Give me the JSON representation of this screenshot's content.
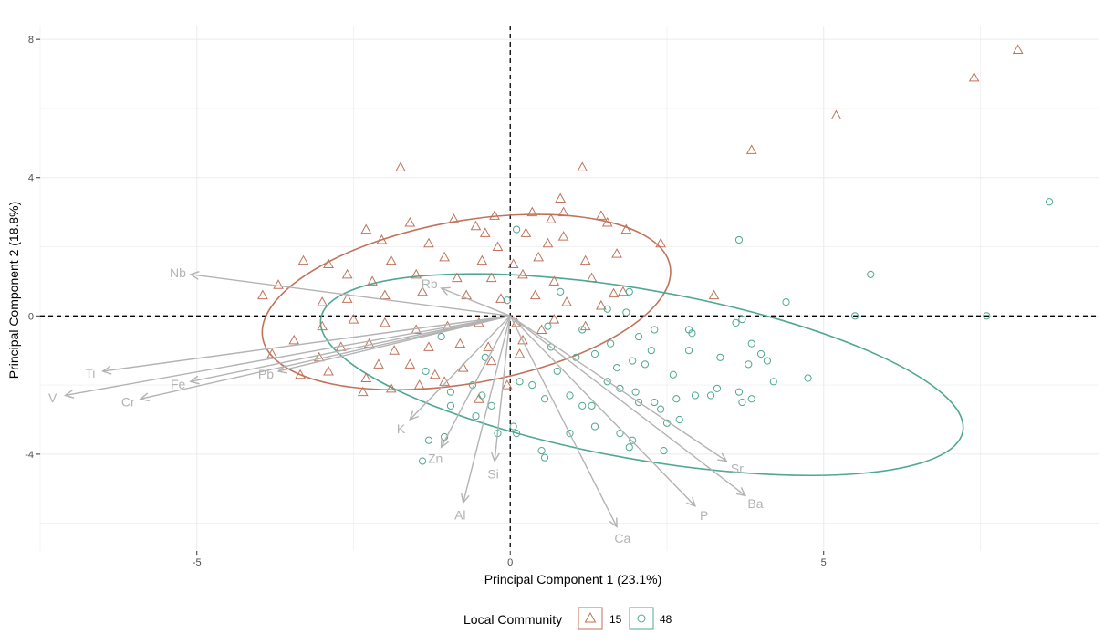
{
  "chart_data": {
    "type": "scatter",
    "title": "",
    "xlabel": "Principal Component 1 (23.1%)",
    "ylabel": "Principal Component 2 (18.8%)",
    "xlim": [
      -7.5,
      9.4
    ],
    "ylim": [
      -6.8,
      8.4
    ],
    "x_ticks": [
      -5,
      0,
      5
    ],
    "y_ticks": [
      -4,
      0,
      4,
      8
    ],
    "x_tick_labels": [
      "-5",
      "0",
      "5"
    ],
    "y_tick_labels": [
      "-4",
      "0",
      "4",
      "8"
    ],
    "grid": true,
    "reference_lines": {
      "x": 0,
      "y": 0,
      "style": "dashed"
    },
    "legend": {
      "title": "Local Community",
      "placement": "bottom",
      "entries": [
        {
          "label": "15",
          "marker": "triangle",
          "color": "#c0735a"
        },
        {
          "label": "48",
          "marker": "circle",
          "color": "#4fa893"
        }
      ]
    },
    "loadings": [
      {
        "name": "Nb",
        "x": -5.1,
        "y": 1.2
      },
      {
        "name": "Rb",
        "x": -1.1,
        "y": 0.8
      },
      {
        "name": "Ti",
        "x": -6.5,
        "y": -1.6
      },
      {
        "name": "V",
        "x": -7.1,
        "y": -2.3
      },
      {
        "name": "Fe",
        "x": -5.1,
        "y": -1.9
      },
      {
        "name": "Cr",
        "x": -5.9,
        "y": -2.4
      },
      {
        "name": "Pb",
        "x": -3.7,
        "y": -1.6
      },
      {
        "name": "K",
        "x": -1.6,
        "y": -3.0
      },
      {
        "name": "Zn",
        "x": -1.1,
        "y": -3.8
      },
      {
        "name": "Si",
        "x": -0.25,
        "y": -4.2
      },
      {
        "name": "Al",
        "x": -0.75,
        "y": -5.4
      },
      {
        "name": "Ca",
        "x": 1.7,
        "y": -6.1
      },
      {
        "name": "P",
        "x": 2.95,
        "y": -5.5
      },
      {
        "name": "Ba",
        "x": 3.75,
        "y": -5.2
      },
      {
        "name": "Sr",
        "x": 3.45,
        "y": -4.2
      }
    ],
    "series": [
      {
        "name": "15",
        "marker": "triangle",
        "color": "#c0735a",
        "ellipse": {
          "cx": -0.7,
          "cy": 0.4,
          "rx": 3.3,
          "ry": 2.35,
          "angle": 10
        },
        "points": [
          [
            8.1,
            7.7
          ],
          [
            7.4,
            6.9
          ],
          [
            5.2,
            5.8
          ],
          [
            3.85,
            4.8
          ],
          [
            -1.75,
            4.3
          ],
          [
            1.15,
            4.3
          ],
          [
            0.8,
            3.4
          ],
          [
            0.35,
            3.0
          ],
          [
            0.85,
            3.0
          ],
          [
            0.65,
            2.8
          ],
          [
            -0.9,
            2.8
          ],
          [
            -0.25,
            2.9
          ],
          [
            1.45,
            2.9
          ],
          [
            1.55,
            2.7
          ],
          [
            1.85,
            2.5
          ],
          [
            2.4,
            2.1
          ],
          [
            -1.6,
            2.7
          ],
          [
            -2.3,
            2.5
          ],
          [
            -0.4,
            2.4
          ],
          [
            -0.55,
            2.6
          ],
          [
            0.25,
            2.4
          ],
          [
            -2.05,
            2.2
          ],
          [
            -1.3,
            2.1
          ],
          [
            -0.2,
            2.0
          ],
          [
            0.6,
            2.1
          ],
          [
            0.85,
            2.3
          ],
          [
            -3.3,
            1.6
          ],
          [
            -2.9,
            1.5
          ],
          [
            -1.9,
            1.6
          ],
          [
            -1.05,
            1.7
          ],
          [
            -0.45,
            1.6
          ],
          [
            0.05,
            1.5
          ],
          [
            0.45,
            1.7
          ],
          [
            1.2,
            1.6
          ],
          [
            1.7,
            1.8
          ],
          [
            -3.95,
            0.6
          ],
          [
            -3.7,
            0.9
          ],
          [
            -2.6,
            1.2
          ],
          [
            -2.2,
            1.0
          ],
          [
            -1.5,
            1.2
          ],
          [
            -0.85,
            1.1
          ],
          [
            -0.3,
            1.1
          ],
          [
            0.2,
            1.2
          ],
          [
            0.7,
            1.0
          ],
          [
            1.3,
            1.1
          ],
          [
            3.25,
            0.6
          ],
          [
            1.8,
            0.7
          ],
          [
            -3.0,
            0.4
          ],
          [
            -2.6,
            0.5
          ],
          [
            -2.0,
            0.6
          ],
          [
            -1.4,
            0.7
          ],
          [
            -0.7,
            0.6
          ],
          [
            -0.15,
            0.5
          ],
          [
            0.4,
            0.6
          ],
          [
            0.9,
            0.4
          ],
          [
            1.45,
            0.3
          ],
          [
            1.65,
            0.65
          ],
          [
            -3.45,
            -0.7
          ],
          [
            -3.0,
            -0.3
          ],
          [
            -2.5,
            -0.1
          ],
          [
            -2.0,
            -0.2
          ],
          [
            -1.5,
            -0.4
          ],
          [
            -1.0,
            -0.3
          ],
          [
            -0.5,
            -0.2
          ],
          [
            0.1,
            -0.2
          ],
          [
            0.7,
            -0.1
          ],
          [
            1.2,
            -0.3
          ],
          [
            -3.35,
            -1.7
          ],
          [
            -3.05,
            -1.2
          ],
          [
            -2.7,
            -0.9
          ],
          [
            -2.25,
            -0.8
          ],
          [
            -1.85,
            -1.0
          ],
          [
            -1.3,
            -0.9
          ],
          [
            -0.8,
            -0.8
          ],
          [
            -0.35,
            -0.9
          ],
          [
            0.2,
            -0.7
          ],
          [
            0.5,
            -0.4
          ],
          [
            -2.35,
            -2.2
          ],
          [
            -2.3,
            -1.8
          ],
          [
            -1.6,
            -1.4
          ],
          [
            -1.2,
            -1.7
          ],
          [
            -0.75,
            -1.5
          ],
          [
            -0.3,
            -1.3
          ],
          [
            0.15,
            -1.1
          ],
          [
            -1.9,
            -2.1
          ],
          [
            -1.05,
            -1.9
          ],
          [
            -0.5,
            -2.4
          ],
          [
            -0.05,
            -2.0
          ],
          [
            -3.8,
            -1.1
          ],
          [
            -2.9,
            -1.6
          ],
          [
            -2.1,
            -1.4
          ],
          [
            -1.45,
            -2.0
          ]
        ]
      },
      {
        "name": "48",
        "marker": "circle",
        "color": "#4fa893",
        "ellipse": {
          "cx": 2.1,
          "cy": -1.7,
          "rx": 5.2,
          "ry": 2.45,
          "angle": -10
        },
        "points": [
          [
            8.6,
            3.3
          ],
          [
            5.75,
            1.2
          ],
          [
            3.65,
            2.2
          ],
          [
            0.1,
            2.5
          ],
          [
            7.6,
            0.0
          ],
          [
            5.5,
            0.0
          ],
          [
            4.4,
            0.4
          ],
          [
            3.7,
            -0.1
          ],
          [
            3.6,
            -0.2
          ],
          [
            1.9,
            0.7
          ],
          [
            1.55,
            0.2
          ],
          [
            1.85,
            0.1
          ],
          [
            0.8,
            0.7
          ],
          [
            -0.05,
            0.45
          ],
          [
            3.85,
            -0.8
          ],
          [
            4.0,
            -1.1
          ],
          [
            4.1,
            -1.3
          ],
          [
            3.35,
            -1.2
          ],
          [
            2.85,
            -0.4
          ],
          [
            2.9,
            -0.5
          ],
          [
            2.3,
            -0.4
          ],
          [
            2.05,
            -0.6
          ],
          [
            1.6,
            -0.8
          ],
          [
            1.15,
            -0.4
          ],
          [
            0.6,
            -0.3
          ],
          [
            3.8,
            -1.4
          ],
          [
            3.2,
            -2.3
          ],
          [
            3.3,
            -2.1
          ],
          [
            2.85,
            -1.0
          ],
          [
            2.6,
            -1.7
          ],
          [
            2.25,
            -1.0
          ],
          [
            2.15,
            -1.4
          ],
          [
            1.95,
            -1.3
          ],
          [
            1.7,
            -1.5
          ],
          [
            1.35,
            -1.1
          ],
          [
            1.05,
            -1.2
          ],
          [
            0.75,
            -1.6
          ],
          [
            4.2,
            -1.9
          ],
          [
            3.7,
            -2.5
          ],
          [
            3.85,
            -2.4
          ],
          [
            4.75,
            -1.8
          ],
          [
            3.65,
            -2.2
          ],
          [
            2.95,
            -2.3
          ],
          [
            2.65,
            -2.4
          ],
          [
            2.4,
            -2.7
          ],
          [
            2.3,
            -2.5
          ],
          [
            2.0,
            -2.2
          ],
          [
            1.75,
            -2.1
          ],
          [
            1.55,
            -1.9
          ],
          [
            1.3,
            -2.6
          ],
          [
            0.95,
            -2.3
          ],
          [
            0.55,
            -2.4
          ],
          [
            0.15,
            -1.9
          ],
          [
            0.35,
            -2.0
          ],
          [
            2.7,
            -3.0
          ],
          [
            2.5,
            -3.1
          ],
          [
            1.75,
            -3.4
          ],
          [
            1.95,
            -3.6
          ],
          [
            1.9,
            -3.8
          ],
          [
            1.35,
            -3.2
          ],
          [
            0.95,
            -3.4
          ],
          [
            0.5,
            -3.9
          ],
          [
            0.55,
            -4.1
          ],
          [
            2.45,
            -3.9
          ],
          [
            0.05,
            -3.2
          ],
          [
            -0.2,
            -3.4
          ],
          [
            -0.3,
            -2.6
          ],
          [
            -0.55,
            -2.9
          ],
          [
            -0.95,
            -2.2
          ],
          [
            -1.35,
            -1.6
          ],
          [
            -1.4,
            -4.2
          ],
          [
            -1.3,
            -3.6
          ],
          [
            -1.05,
            -3.5
          ],
          [
            -0.95,
            -2.6
          ],
          [
            -0.6,
            -2.0
          ],
          [
            -0.4,
            -1.2
          ],
          [
            -0.45,
            -2.3
          ],
          [
            -1.1,
            -0.6
          ],
          [
            0.1,
            -3.4
          ],
          [
            0.65,
            -0.9
          ],
          [
            1.15,
            -2.6
          ],
          [
            2.05,
            -2.5
          ]
        ]
      }
    ]
  }
}
